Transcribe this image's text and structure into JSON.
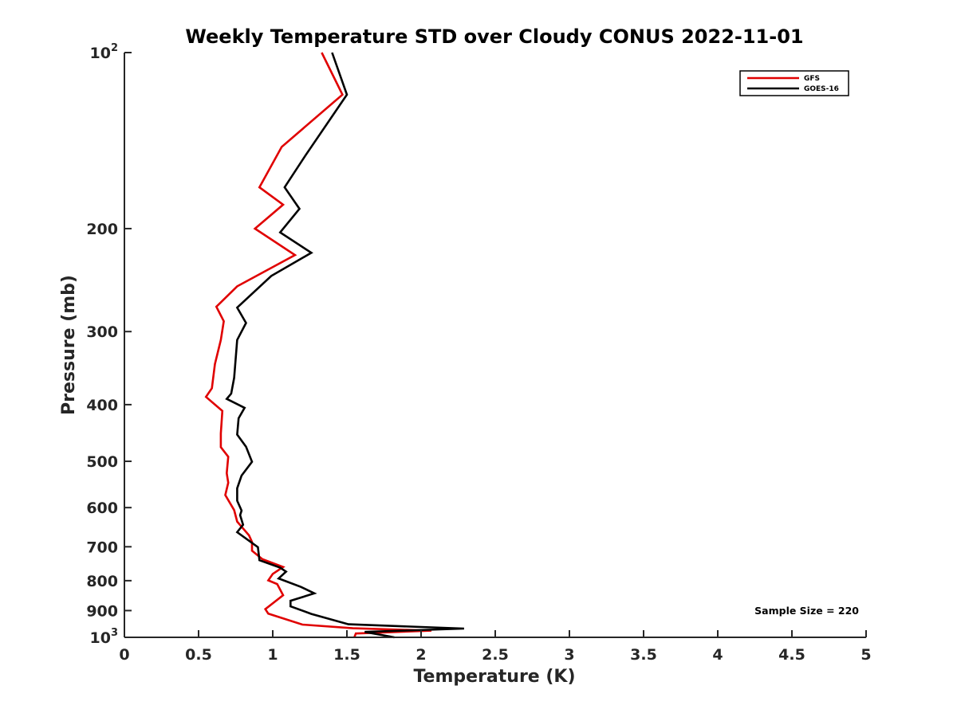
{
  "chart_data": {
    "type": "line",
    "title": "Weekly Temperature STD over Cloudy CONUS 2022-11-01",
    "xlabel": "Temperature (K)",
    "ylabel": "Pressure (mb)",
    "xlim": [
      0,
      5
    ],
    "ylim": [
      100,
      1000
    ],
    "y_scale": "log",
    "y_reversed": true,
    "x_ticks": [
      0,
      0.5,
      1,
      1.5,
      2,
      2.5,
      3,
      3.5,
      4,
      4.5,
      5
    ],
    "x_tick_labels": [
      "0",
      "0.5",
      "1",
      "1.5",
      "2",
      "2.5",
      "3",
      "3.5",
      "4",
      "4.5",
      "5"
    ],
    "y_ticks": [
      {
        "value": 100,
        "label": "10",
        "sup": "2"
      },
      {
        "value": 200,
        "label": "200"
      },
      {
        "value": 300,
        "label": "300"
      },
      {
        "value": 400,
        "label": "400"
      },
      {
        "value": 500,
        "label": "500"
      },
      {
        "value": 600,
        "label": "600"
      },
      {
        "value": 700,
        "label": "700"
      },
      {
        "value": 800,
        "label": "800"
      },
      {
        "value": 900,
        "label": "900"
      },
      {
        "value": 1000,
        "label": "10",
        "sup": "3"
      }
    ],
    "grid": false,
    "legend_position": "top-right",
    "annotation": "Sample Size = 220",
    "series": [
      {
        "name": "GFS",
        "color": "#e00000",
        "points": [
          [
            1.33,
            100
          ],
          [
            1.47,
            118
          ],
          [
            1.06,
            145
          ],
          [
            0.91,
            170
          ],
          [
            1.07,
            182
          ],
          [
            0.88,
            200
          ],
          [
            1.15,
            222
          ],
          [
            0.76,
            251
          ],
          [
            0.62,
            272
          ],
          [
            0.67,
            288
          ],
          [
            0.65,
            310
          ],
          [
            0.61,
            341
          ],
          [
            0.59,
            375
          ],
          [
            0.55,
            388
          ],
          [
            0.66,
            410
          ],
          [
            0.65,
            448
          ],
          [
            0.65,
            473
          ],
          [
            0.7,
            491
          ],
          [
            0.69,
            524
          ],
          [
            0.7,
            544
          ],
          [
            0.68,
            571
          ],
          [
            0.74,
            606
          ],
          [
            0.76,
            634
          ],
          [
            0.84,
            669
          ],
          [
            0.86,
            687
          ],
          [
            0.86,
            711
          ],
          [
            0.93,
            735
          ],
          [
            1.07,
            758
          ],
          [
            1.0,
            779
          ],
          [
            0.97,
            799
          ],
          [
            1.03,
            811
          ],
          [
            1.07,
            847
          ],
          [
            0.95,
            895
          ],
          [
            0.97,
            911
          ],
          [
            1.2,
            951
          ],
          [
            1.54,
            965
          ],
          [
            2.07,
            974
          ],
          [
            1.56,
            985
          ],
          [
            1.55,
            1000
          ]
        ]
      },
      {
        "name": "GOES-16",
        "color": "#000000",
        "points": [
          [
            1.4,
            100
          ],
          [
            1.5,
            118
          ],
          [
            1.22,
            150
          ],
          [
            1.08,
            170
          ],
          [
            1.18,
            185
          ],
          [
            1.05,
            203
          ],
          [
            1.26,
            220
          ],
          [
            0.99,
            241
          ],
          [
            0.76,
            273
          ],
          [
            0.82,
            290
          ],
          [
            0.76,
            310
          ],
          [
            0.74,
            360
          ],
          [
            0.72,
            383
          ],
          [
            0.69,
            391
          ],
          [
            0.81,
            405
          ],
          [
            0.77,
            422
          ],
          [
            0.76,
            450
          ],
          [
            0.82,
            472
          ],
          [
            0.86,
            501
          ],
          [
            0.79,
            529
          ],
          [
            0.76,
            556
          ],
          [
            0.76,
            584
          ],
          [
            0.79,
            607
          ],
          [
            0.78,
            618
          ],
          [
            0.8,
            642
          ],
          [
            0.76,
            661
          ],
          [
            0.9,
            701
          ],
          [
            0.91,
            738
          ],
          [
            1.05,
            760
          ],
          [
            1.09,
            772
          ],
          [
            1.04,
            793
          ],
          [
            1.19,
            820
          ],
          [
            1.28,
            841
          ],
          [
            1.12,
            866
          ],
          [
            1.12,
            885
          ],
          [
            1.26,
            912
          ],
          [
            1.51,
            950
          ],
          [
            2.29,
            966
          ],
          [
            1.62,
            979
          ],
          [
            1.82,
            1000
          ]
        ]
      }
    ]
  }
}
